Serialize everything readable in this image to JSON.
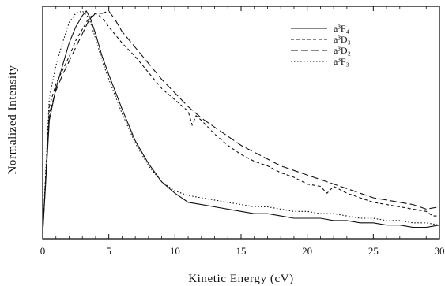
{
  "chart_data": {
    "type": "line",
    "title": "",
    "xlabel": "Kinetic Energy (cV)",
    "ylabel": "Normalized Intensity",
    "xlim": [
      0,
      30
    ],
    "ylim": [
      0,
      1
    ],
    "grid": false,
    "legend_position": "top-right",
    "x_ticks": [
      "0",
      "5",
      "10",
      "15",
      "20",
      "25",
      "30"
    ],
    "series": [
      {
        "name": "a³F₄",
        "legend_label": "a³F₄",
        "style": "solid",
        "x": [
          0,
          0.5,
          1,
          1.5,
          2,
          2.5,
          3,
          3.3,
          3.6,
          4,
          4.5,
          5,
          6,
          7,
          8,
          9,
          10,
          11,
          12,
          13,
          14,
          15,
          16,
          17,
          18,
          19,
          20,
          21,
          22,
          23,
          24,
          25,
          26,
          27,
          28,
          29,
          30
        ],
        "y": [
          0.02,
          0.52,
          0.66,
          0.76,
          0.86,
          0.93,
          0.98,
          1.0,
          0.97,
          0.9,
          0.8,
          0.72,
          0.57,
          0.43,
          0.33,
          0.25,
          0.2,
          0.16,
          0.15,
          0.14,
          0.13,
          0.12,
          0.11,
          0.11,
          0.1,
          0.09,
          0.09,
          0.09,
          0.08,
          0.08,
          0.07,
          0.07,
          0.06,
          0.06,
          0.05,
          0.05,
          0.06
        ]
      },
      {
        "name": "a³D₃",
        "legend_label": "a³D₃",
        "style": "dashed",
        "x": [
          0,
          0.5,
          1,
          1.5,
          2,
          2.5,
          3,
          3.5,
          4,
          4.5,
          5,
          6,
          7,
          8,
          9,
          10,
          11,
          11.3,
          11.6,
          12,
          13,
          14,
          15,
          16,
          17,
          18,
          19,
          20,
          21,
          21.5,
          22,
          23,
          24,
          25,
          26,
          27,
          28,
          29,
          29.5,
          30
        ],
        "y": [
          0.02,
          0.58,
          0.68,
          0.74,
          0.8,
          0.87,
          0.92,
          0.97,
          0.99,
          0.97,
          0.93,
          0.86,
          0.8,
          0.73,
          0.66,
          0.61,
          0.56,
          0.5,
          0.54,
          0.52,
          0.46,
          0.41,
          0.37,
          0.34,
          0.32,
          0.29,
          0.27,
          0.24,
          0.23,
          0.2,
          0.23,
          0.2,
          0.18,
          0.16,
          0.15,
          0.14,
          0.13,
          0.12,
          0.1,
          0.1
        ]
      },
      {
        "name": "a³D₂",
        "legend_label": "a³D₂",
        "style": "long-dashed",
        "x": [
          0,
          0.5,
          1,
          1.5,
          2,
          2.5,
          3,
          3.5,
          4,
          4.5,
          5,
          5.5,
          6,
          7,
          8,
          9,
          10,
          11,
          12,
          13,
          14,
          15,
          16,
          17,
          18,
          19,
          20,
          21,
          22,
          23,
          24,
          25,
          26,
          27,
          28,
          29,
          30
        ],
        "y": [
          0.02,
          0.55,
          0.65,
          0.72,
          0.78,
          0.84,
          0.9,
          0.96,
          0.99,
          0.99,
          1.0,
          0.96,
          0.91,
          0.84,
          0.77,
          0.7,
          0.64,
          0.58,
          0.53,
          0.49,
          0.45,
          0.41,
          0.38,
          0.35,
          0.32,
          0.3,
          0.28,
          0.26,
          0.24,
          0.22,
          0.2,
          0.18,
          0.17,
          0.16,
          0.15,
          0.13,
          0.14
        ]
      },
      {
        "name": "a³F₃",
        "legend_label": "a³F₃",
        "style": "dotted",
        "x": [
          0,
          0.5,
          1,
          1.5,
          2,
          2.5,
          3,
          3.5,
          4,
          4.5,
          5,
          6,
          7,
          8,
          9,
          10,
          11,
          12,
          13,
          14,
          15,
          16,
          17,
          18,
          19,
          20,
          21,
          22,
          23,
          24,
          25,
          26,
          27,
          28,
          29,
          30
        ],
        "y": [
          0.02,
          0.62,
          0.76,
          0.86,
          0.95,
          0.99,
          1.0,
          0.97,
          0.88,
          0.78,
          0.7,
          0.55,
          0.42,
          0.32,
          0.25,
          0.21,
          0.19,
          0.18,
          0.17,
          0.16,
          0.15,
          0.14,
          0.14,
          0.13,
          0.12,
          0.12,
          0.11,
          0.11,
          0.1,
          0.09,
          0.09,
          0.08,
          0.08,
          0.07,
          0.07,
          0.06
        ]
      }
    ]
  }
}
